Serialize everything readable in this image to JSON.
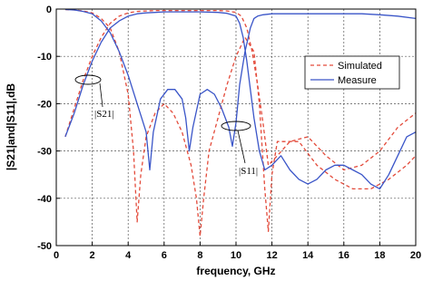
{
  "chart_data": {
    "type": "line",
    "xlabel": "frequency, GHz",
    "ylabel": "|S21|and|S11|,dB",
    "xlim": [
      0,
      20
    ],
    "ylim": [
      -50,
      0
    ],
    "xticks": [
      0,
      2,
      4,
      6,
      8,
      10,
      12,
      14,
      16,
      18,
      20
    ],
    "yticks": [
      0,
      -10,
      -20,
      -30,
      -40,
      -50
    ],
    "grid": true,
    "legend_position": "top-right",
    "legend": [
      {
        "label": "Simulated",
        "style": "dashed",
        "color": "#e34a3a"
      },
      {
        "label": "Measure",
        "style": "solid",
        "color": "#3a55c8"
      }
    ],
    "annotations": [
      {
        "text": "|S21|",
        "refers_to": "S21"
      },
      {
        "text": "|S11|",
        "refers_to": "S11"
      }
    ],
    "series": [
      {
        "label": "Simulated",
        "curve": "S21",
        "color": "#e34a3a",
        "dash": "dashed",
        "x": [
          0.5,
          1,
          1.5,
          2,
          2.5,
          3,
          3.5,
          4,
          4.5,
          5,
          5.5,
          6,
          6.5,
          7,
          7.5,
          8,
          8.5,
          9,
          9.5,
          10,
          10.3,
          10.6,
          10.9,
          11.2,
          11.5,
          11.8,
          12.3,
          13,
          14,
          15,
          16,
          17,
          18,
          19,
          20
        ],
        "y": [
          -27,
          -21,
          -15,
          -10,
          -6,
          -3,
          -1.5,
          -0.8,
          -0.5,
          -0.4,
          -0.3,
          -0.3,
          -0.3,
          -0.3,
          -0.3,
          -0.3,
          -0.3,
          -0.3,
          -0.4,
          -0.7,
          -1.5,
          -4,
          -9,
          -16,
          -24,
          -33,
          -31,
          -28,
          -27,
          -31,
          -34,
          -33,
          -30,
          -25,
          -22
        ]
      },
      {
        "label": "Simulated",
        "curve": "S11",
        "color": "#e34a3a",
        "dash": "dashed",
        "x": [
          0.5,
          1,
          1.5,
          2,
          2.5,
          3,
          3.5,
          4,
          4.3,
          4.5,
          4.7,
          5,
          5.5,
          6,
          6.5,
          7,
          7.5,
          7.8,
          8,
          8.2,
          8.5,
          9,
          9.5,
          10,
          10.5,
          11,
          11.3,
          11.6,
          11.8,
          12,
          12.3,
          12.8,
          13.5,
          14.5,
          15.5,
          16.5,
          17.5,
          18.5,
          19.5,
          20
        ],
        "y": [
          -0.1,
          -0.2,
          -0.4,
          -0.8,
          -2,
          -4,
          -9,
          -18,
          -30,
          -45,
          -35,
          -27,
          -22,
          -20,
          -22,
          -26,
          -33,
          -40,
          -48,
          -40,
          -30,
          -23,
          -16,
          -10,
          -6,
          -9,
          -20,
          -38,
          -47,
          -35,
          -28,
          -28,
          -28,
          -33,
          -36,
          -38,
          -38,
          -36,
          -33,
          -31
        ]
      },
      {
        "label": "Measure",
        "curve": "S21",
        "color": "#3a55c8",
        "dash": "solid",
        "x": [
          0.5,
          1,
          1.5,
          2,
          2.5,
          3,
          3.5,
          4,
          4.5,
          5,
          5.5,
          6,
          7,
          8,
          9,
          9.5,
          10,
          10.2,
          10.4,
          10.6,
          10.8,
          11,
          11.3,
          11.6,
          12,
          12.5,
          13,
          13.5,
          14,
          14.5,
          15,
          15.5,
          16,
          16.5,
          17,
          17.5,
          18,
          18.5,
          19,
          19.5,
          20
        ],
        "y": [
          -27,
          -22,
          -16,
          -11,
          -7,
          -4,
          -2.5,
          -1.5,
          -1,
          -0.8,
          -0.7,
          -0.6,
          -0.6,
          -0.6,
          -0.7,
          -0.9,
          -1.5,
          -3,
          -6,
          -11,
          -17,
          -23,
          -30,
          -34,
          -33,
          -31,
          -34,
          -36,
          -37,
          -36,
          -34,
          -33,
          -33,
          -34,
          -35,
          -37,
          -38,
          -35,
          -31,
          -27,
          -26
        ]
      },
      {
        "label": "Measure",
        "curve": "S11",
        "color": "#3a55c8",
        "dash": "solid",
        "x": [
          0.5,
          1,
          1.5,
          2,
          2.5,
          3,
          3.5,
          4,
          4.5,
          5,
          5.2,
          5.4,
          5.8,
          6.2,
          6.6,
          7,
          7.2,
          7.4,
          7.6,
          8,
          8.4,
          8.8,
          9.2,
          9.6,
          9.8,
          10,
          10.2,
          10.5,
          10.8,
          11,
          11.2,
          11.5,
          12,
          13,
          14,
          15,
          16,
          17,
          18,
          19,
          20
        ],
        "y": [
          -0.1,
          -0.2,
          -0.5,
          -1,
          -2.5,
          -5,
          -9,
          -14,
          -20,
          -26,
          -34,
          -26,
          -19,
          -17,
          -17,
          -19,
          -23,
          -30,
          -25,
          -18,
          -17,
          -18,
          -21,
          -25,
          -29,
          -24,
          -16,
          -9,
          -4,
          -2,
          -1.5,
          -1.2,
          -1,
          -1,
          -1,
          -1,
          -1,
          -1,
          -1.2,
          -1.5,
          -2
        ]
      }
    ]
  }
}
